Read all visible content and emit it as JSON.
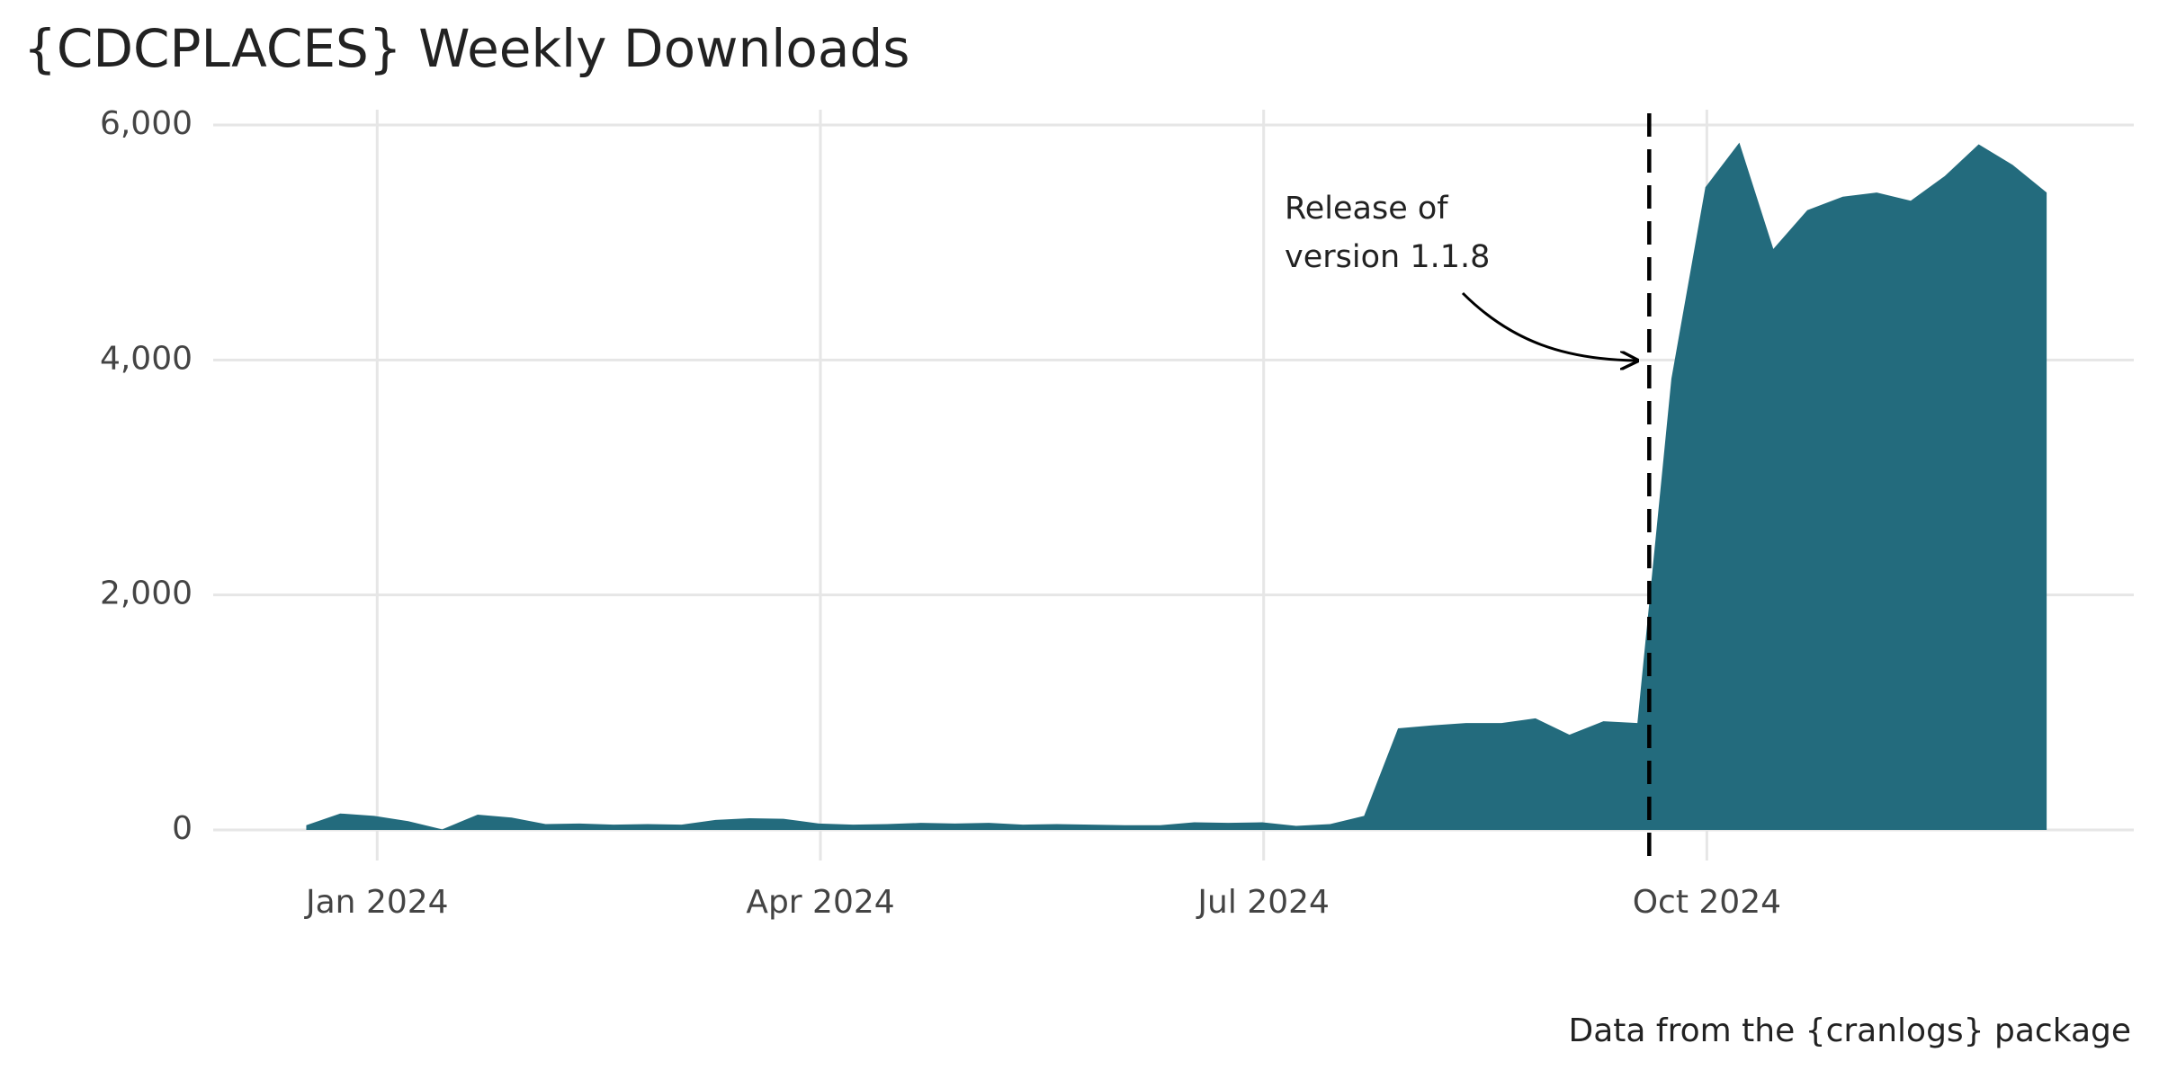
{
  "chart_data": {
    "type": "area",
    "title": "{CDCPLACES} Weekly Downloads",
    "caption": "Data from the {cranlogs} package",
    "annotation": {
      "lines": [
        "Release of",
        "version 1.1.8"
      ],
      "vline_x": 8.61
    },
    "color": "#236b7d",
    "grid": true,
    "x": [
      -0.48,
      -0.25,
      -0.02,
      0.21,
      0.44,
      0.68,
      0.91,
      1.14,
      1.37,
      1.6,
      1.83,
      2.06,
      2.29,
      2.52,
      2.75,
      2.99,
      3.22,
      3.45,
      3.68,
      3.91,
      4.14,
      4.37,
      4.6,
      4.83,
      5.06,
      5.3,
      5.53,
      5.76,
      5.99,
      6.22,
      6.45,
      6.68,
      6.91,
      7.14,
      7.37,
      7.61,
      7.84,
      8.07,
      8.3,
      8.53,
      8.76,
      8.99,
      9.22,
      9.45,
      9.68,
      9.92,
      10.15,
      10.38,
      10.61,
      10.84,
      11.07,
      11.3
    ],
    "values": [
      40,
      140,
      120,
      75,
      5,
      130,
      105,
      50,
      55,
      45,
      50,
      45,
      85,
      100,
      95,
      55,
      45,
      50,
      60,
      55,
      60,
      45,
      50,
      45,
      40,
      40,
      65,
      60,
      65,
      35,
      50,
      120,
      865,
      890,
      910,
      910,
      950,
      810,
      925,
      910,
      3840,
      5470,
      5850,
      4945,
      5275,
      5390,
      5425,
      5355,
      5565,
      5835,
      5660,
      5425
    ],
    "xlim": [
      -1.11,
      11.89
    ],
    "xticks": [
      {
        "value": 0,
        "label": "Jan 2024"
      },
      {
        "value": 3,
        "label": "Apr 2024"
      },
      {
        "value": 6,
        "label": "Jul 2024"
      },
      {
        "value": 9,
        "label": "Oct 2024"
      }
    ],
    "ylim": [
      -260,
      6130
    ],
    "yticks": [
      0,
      {
        "value": 2000,
        "label": "2,000"
      },
      {
        "value": 4000,
        "label": "4,000"
      },
      {
        "value": 6000,
        "label": "6,000"
      }
    ]
  }
}
